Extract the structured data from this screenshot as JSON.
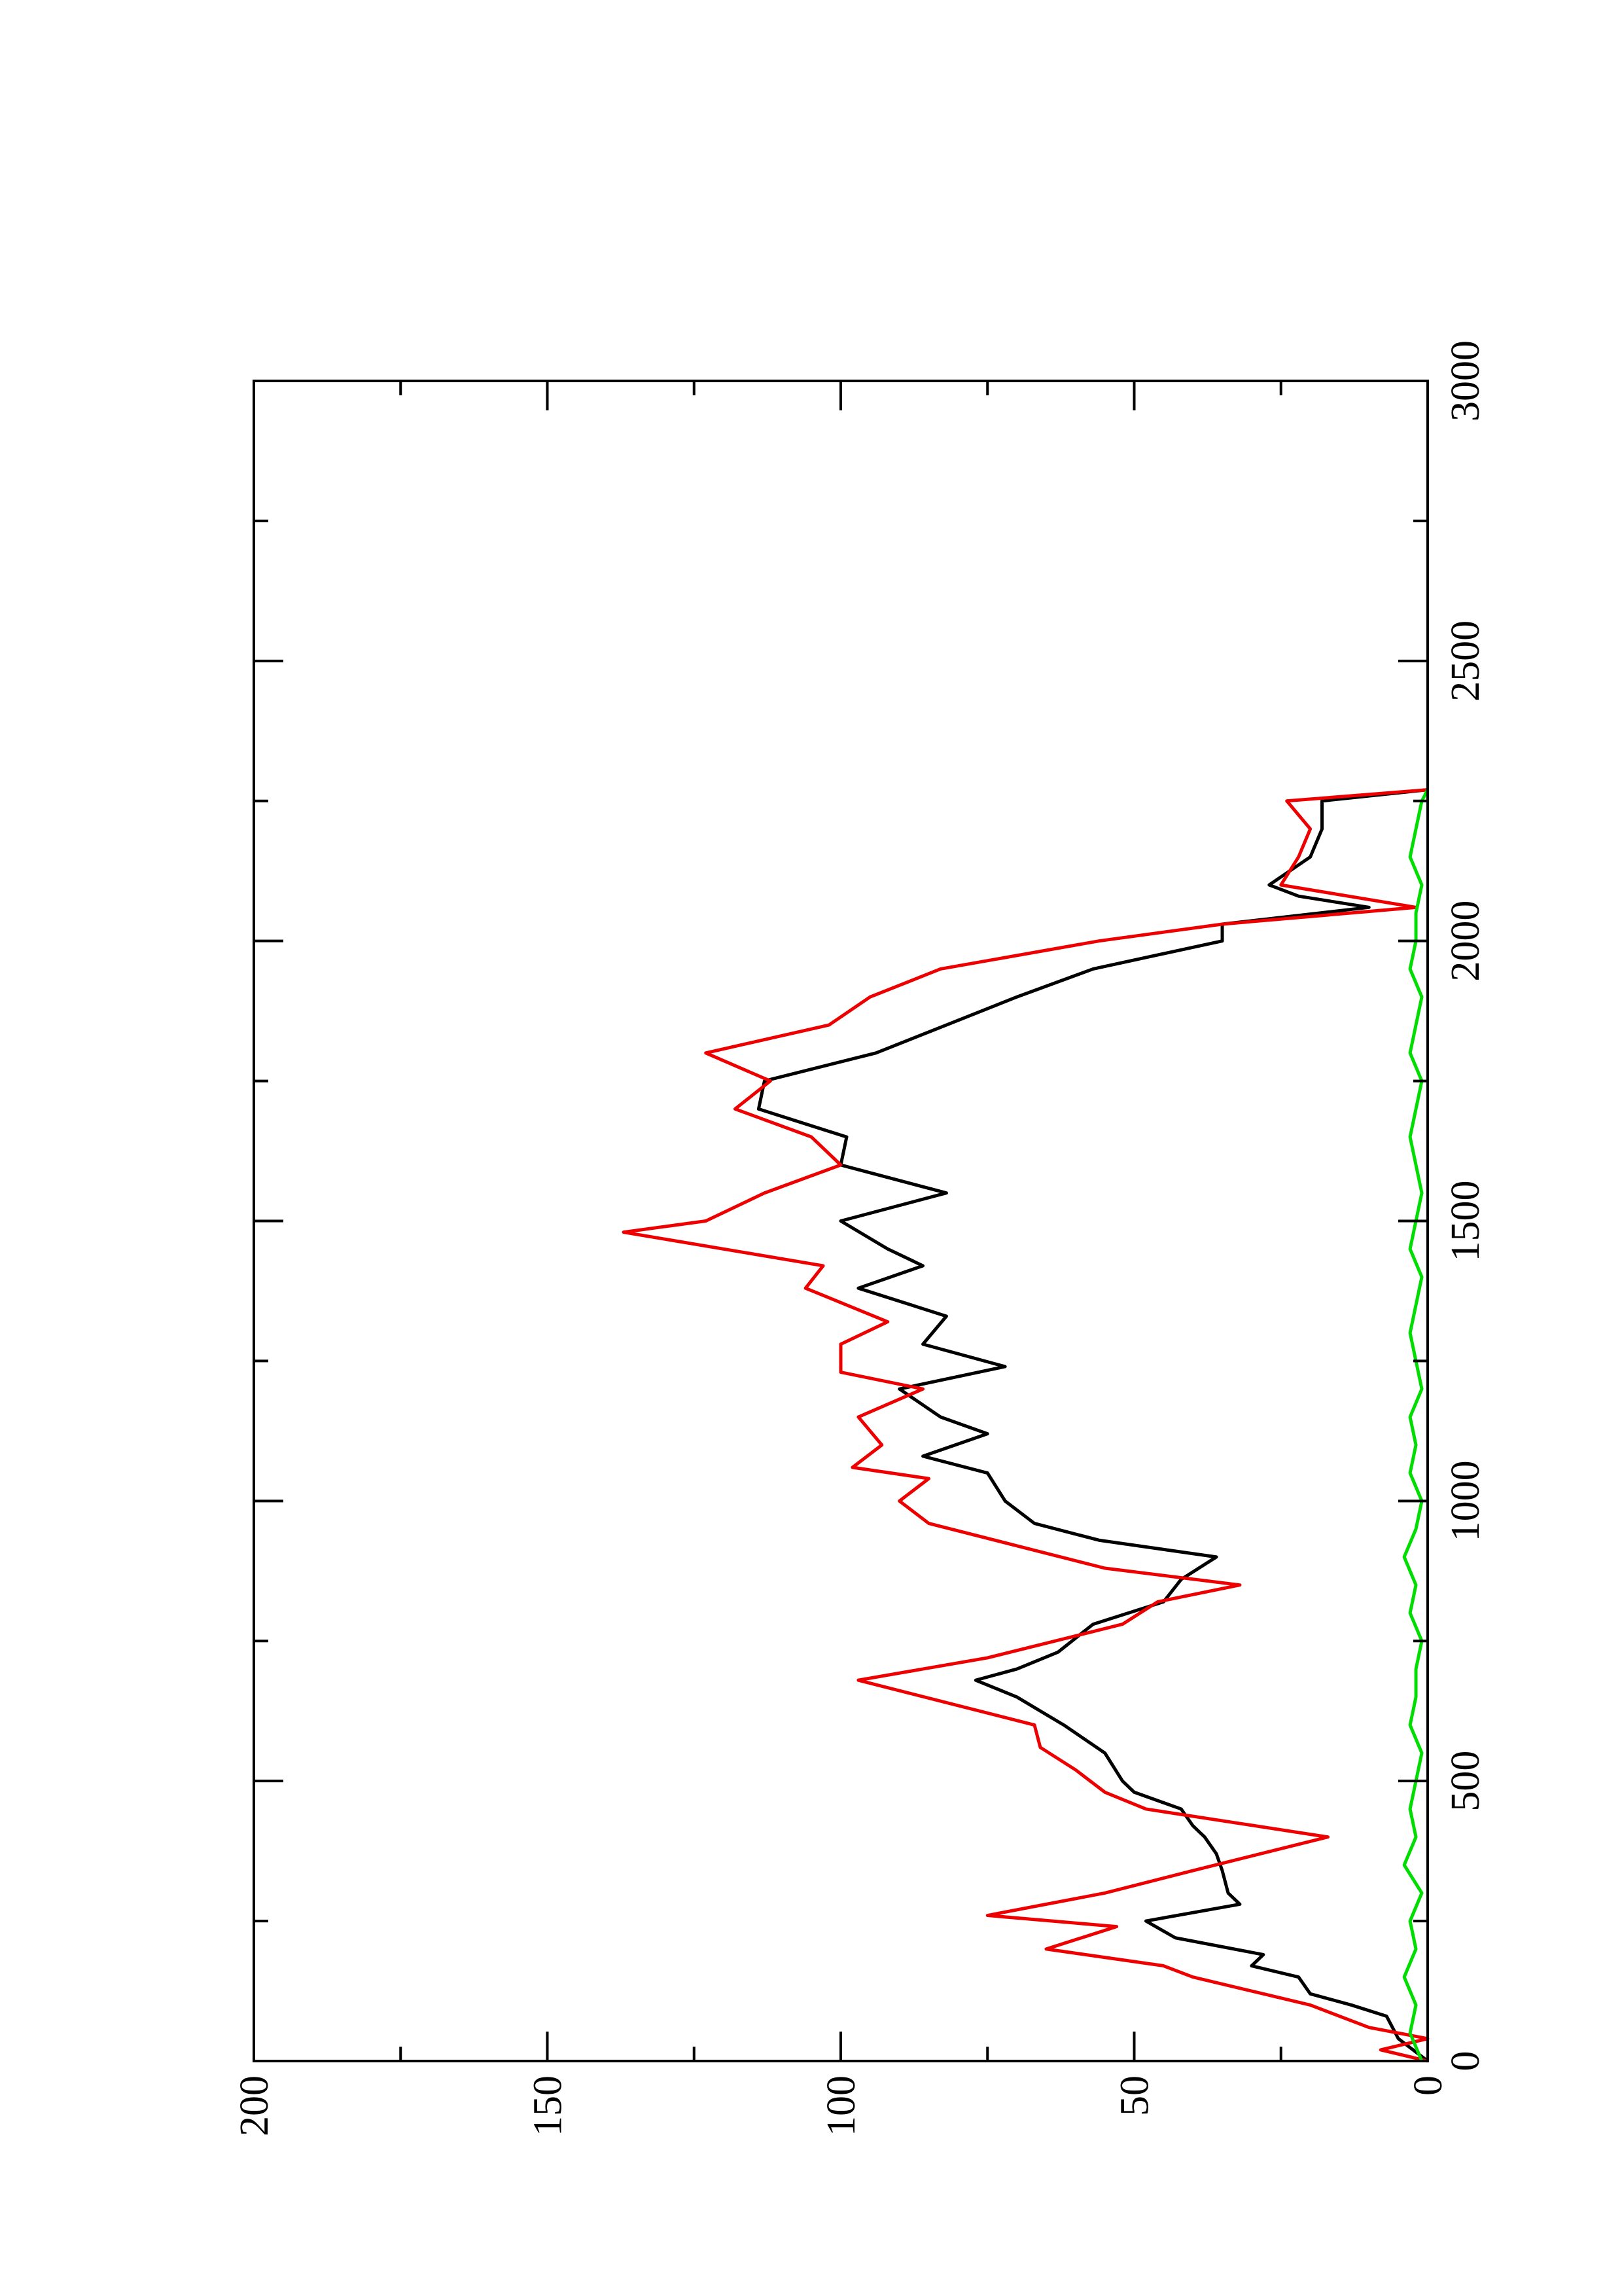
{
  "chart_data": {
    "type": "line",
    "xlim": [
      0,
      3000
    ],
    "xticks": [
      0,
      500,
      1000,
      1500,
      2000,
      2500,
      3000
    ],
    "xminor_ticks": [
      250,
      750,
      1250,
      1750,
      2250,
      2750
    ],
    "ylim": [
      0,
      200
    ],
    "yticks": [
      0,
      50,
      100,
      150,
      200
    ],
    "yminor_ticks": [
      25,
      75,
      125,
      175
    ],
    "series": [
      {
        "color": "#000000",
        "x": [
          0,
          40,
          80,
          100,
          120,
          150,
          170,
          190,
          220,
          250,
          280,
          300,
          340,
          370,
          400,
          420,
          450,
          480,
          500,
          550,
          600,
          650,
          680,
          700,
          730,
          780,
          820,
          860,
          900,
          930,
          960,
          1000,
          1050,
          1080,
          1120,
          1150,
          1200,
          1240,
          1280,
          1330,
          1380,
          1420,
          1450,
          1500,
          1550,
          1600,
          1650,
          1700,
          1750,
          1800,
          1850,
          1900,
          1950,
          2000,
          2030,
          2060,
          2080,
          2100,
          2150,
          2200,
          2250,
          2270
        ],
        "values": [
          0,
          5,
          7,
          13,
          20,
          22,
          30,
          28,
          43,
          48,
          32,
          34,
          35,
          36,
          38,
          40,
          42,
          50,
          52,
          55,
          62,
          70,
          77,
          70,
          63,
          57,
          45,
          42,
          36,
          56,
          67,
          72,
          75,
          86,
          75,
          83,
          90,
          72,
          86,
          82,
          97,
          86,
          92,
          100,
          82,
          100,
          99,
          114,
          113,
          94,
          82,
          70,
          57,
          35,
          35,
          10,
          22,
          27,
          20,
          18,
          18,
          0
        ]
      },
      {
        "color": "#ee0000",
        "x": [
          0,
          20,
          40,
          60,
          100,
          150,
          170,
          200,
          240,
          260,
          300,
          340,
          400,
          450,
          480,
          520,
          560,
          600,
          680,
          720,
          780,
          820,
          850,
          880,
          920,
          960,
          1000,
          1040,
          1060,
          1100,
          1150,
          1200,
          1230,
          1280,
          1320,
          1380,
          1420,
          1480,
          1500,
          1550,
          1600,
          1650,
          1700,
          1750,
          1800,
          1850,
          1900,
          1950,
          2000,
          2030,
          2060,
          2100,
          2150,
          2200,
          2250,
          2270
        ],
        "values": [
          0,
          8,
          0,
          10,
          20,
          40,
          45,
          65,
          53,
          75,
          55,
          40,
          17,
          48,
          55,
          60,
          66,
          67,
          97,
          75,
          52,
          46,
          32,
          55,
          70,
          85,
          90,
          85,
          98,
          93,
          97,
          86,
          100,
          100,
          92,
          106,
          103,
          137,
          123,
          113,
          100,
          105,
          118,
          112,
          123,
          102,
          95,
          83,
          56,
          35,
          2,
          25,
          22,
          20,
          24,
          0
        ]
      },
      {
        "color": "#00dd00",
        "x": [
          0,
          50,
          100,
          150,
          200,
          250,
          300,
          350,
          400,
          450,
          500,
          550,
          600,
          650,
          700,
          750,
          800,
          850,
          900,
          950,
          1000,
          1050,
          1100,
          1150,
          1200,
          1250,
          1300,
          1350,
          1400,
          1450,
          1500,
          1550,
          1600,
          1650,
          1700,
          1750,
          1800,
          1850,
          1900,
          1950,
          2000,
          2050,
          2100,
          2150,
          2200,
          2250,
          2270
        ],
        "values": [
          1,
          3,
          2,
          4,
          2,
          3,
          1,
          4,
          2,
          3,
          2,
          1,
          3,
          2,
          2,
          1,
          3,
          2,
          4,
          2,
          1,
          3,
          2,
          3,
          1,
          2,
          3,
          2,
          1,
          3,
          2,
          1,
          2,
          3,
          2,
          1,
          3,
          2,
          1,
          3,
          2,
          2,
          1,
          3,
          2,
          1,
          0
        ]
      }
    ]
  }
}
